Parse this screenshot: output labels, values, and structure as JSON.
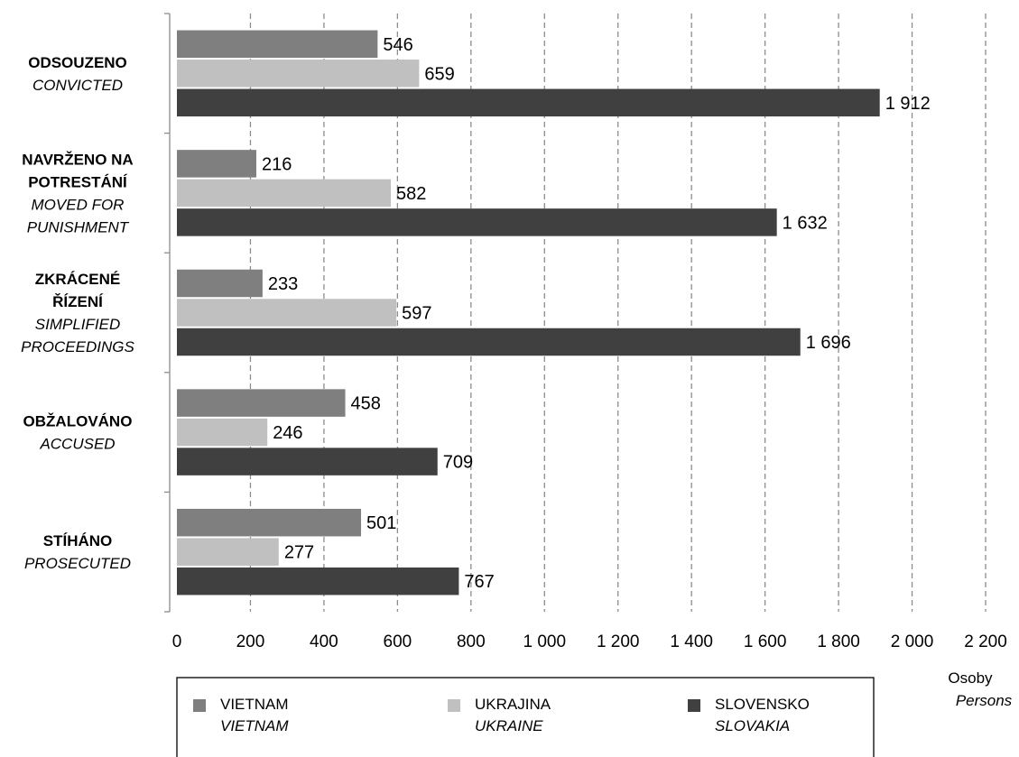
{
  "chart_data": {
    "type": "bar",
    "orientation": "horizontal",
    "categories": [
      {
        "lines": [
          "ODSOUZENO"
        ],
        "lines_en": [
          "CONVICTED"
        ]
      },
      {
        "lines": [
          "NAVRŽENO NA",
          "POTRESTÁNÍ"
        ],
        "lines_en": [
          "MOVED FOR",
          "PUNISHMENT"
        ]
      },
      {
        "lines": [
          "ZKRÁCENÉ",
          "ŘÍZENÍ"
        ],
        "lines_en": [
          "SIMPLIFIED",
          "PROCEEDINGS"
        ]
      },
      {
        "lines": [
          "OBŽALOVÁNO"
        ],
        "lines_en": [
          "ACCUSED"
        ]
      },
      {
        "lines": [
          "STÍHÁNO"
        ],
        "lines_en": [
          "PROSECUTED"
        ]
      }
    ],
    "series": [
      {
        "name": "VIETNAM",
        "name_en": "VIETNAM",
        "color": "#7f7f7f",
        "values": [
          546,
          216,
          233,
          458,
          501
        ],
        "labels": [
          "546",
          "216",
          "233",
          "458",
          "501"
        ]
      },
      {
        "name": "UKRAJINA",
        "name_en": "UKRAINE",
        "color": "#c0c0c0",
        "values": [
          659,
          582,
          597,
          246,
          277
        ],
        "labels": [
          "659",
          "582",
          "597",
          "246",
          "277"
        ]
      },
      {
        "name": "SLOVENSKO",
        "name_en": "SLOVAKIA",
        "color": "#404040",
        "values": [
          1912,
          1632,
          1696,
          709,
          767
        ],
        "labels": [
          "1 912",
          "1 632",
          "1 696",
          "709",
          "767"
        ]
      }
    ],
    "xlim": [
      0,
      2200
    ],
    "xticks": [
      0,
      200,
      400,
      600,
      800,
      1000,
      1200,
      1400,
      1600,
      1800,
      2000,
      2200
    ],
    "xtick_labels": [
      "0",
      "200",
      "400",
      "600",
      "800",
      "1 000",
      "1 200",
      "1 400",
      "1 600",
      "1 800",
      "2 000",
      "2 200"
    ],
    "xlabel": "Osoby",
    "xlabel_en": "Persons",
    "grid": "vertical-dashed",
    "legend_position": "bottom"
  }
}
